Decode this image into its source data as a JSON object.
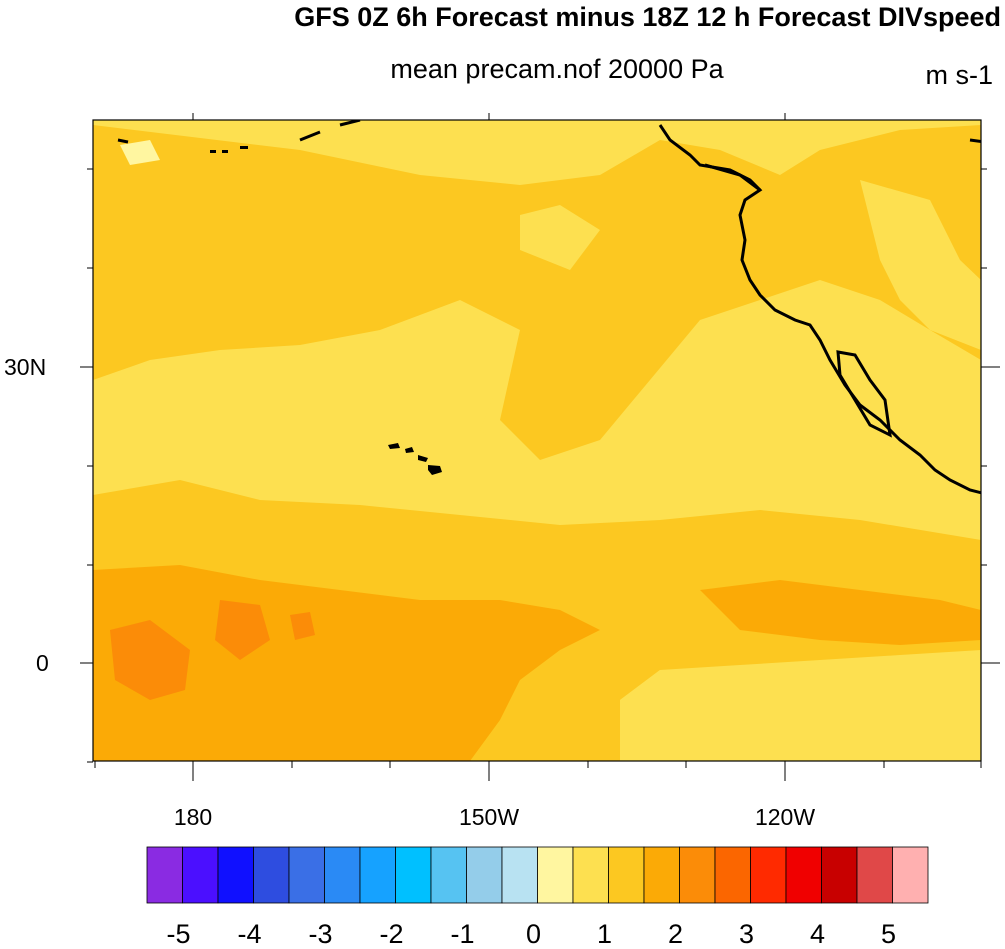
{
  "title": "GFS 0Z 6h Forecast minus 18Z 12 h Forecast DIVspeed",
  "subtitle_center": "mean precam.nof 20000 Pa",
  "subtitle_right": "m s-1",
  "lat_labels": [
    "30N",
    "0"
  ],
  "lon_labels": [
    "180",
    "150W",
    "120W"
  ],
  "colorbar": {
    "colors": [
      "#8a2be2",
      "#4b0fff",
      "#1010ff",
      "#2e4de0",
      "#3a6fe6",
      "#2a8af5",
      "#16a2ff",
      "#00c0ff",
      "#56c3f2",
      "#94cdea",
      "#b8e2f2",
      "#fff6a0",
      "#fde050",
      "#fcc821",
      "#fbaa06",
      "#fb8c08",
      "#fb6600",
      "#ff2a00",
      "#f00000",
      "#c80000",
      "#e04848",
      "#ffb0b0"
    ],
    "labels": [
      "-5",
      "-4",
      "-3",
      "-2",
      "-1",
      "0",
      "1",
      "2",
      "3",
      "4",
      "5"
    ]
  },
  "colors": {
    "field_light": "#fde050",
    "field_mid": "#fcc821",
    "field_dark": "#fbaa06",
    "field_darker": "#fb8c08",
    "field_pale": "#fff6a0"
  }
}
